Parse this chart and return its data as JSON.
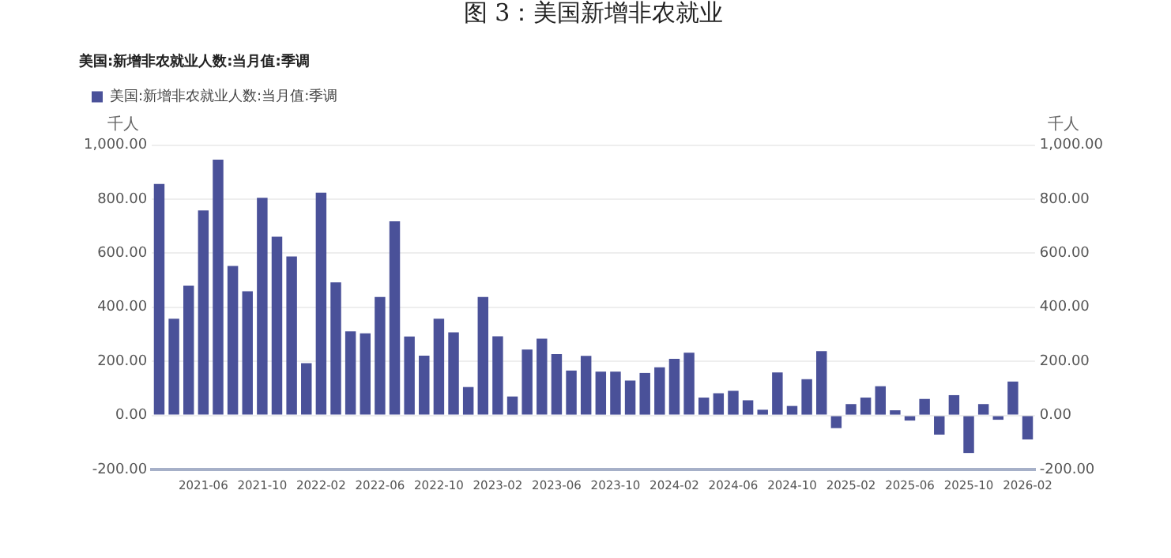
{
  "chart_data": {
    "type": "bar",
    "title": "图 3：美国新增非农就业",
    "subtitle": "美国:新增非农就业人数:当月值:季调",
    "ylabel": "千人",
    "y2label": "千人",
    "categories": [
      null,
      null,
      null,
      "2021-06",
      null,
      null,
      null,
      "2021-10",
      null,
      null,
      null,
      "2022-02",
      null,
      null,
      null,
      "2022-06",
      null,
      null,
      null,
      "2022-10",
      null,
      null,
      null,
      "2023-02",
      null,
      null,
      null,
      "2023-06",
      null,
      null,
      null,
      "2023-10",
      null,
      null,
      null,
      "2024-02",
      null,
      null,
      null,
      "2024-06",
      null,
      null,
      null,
      "2024-10",
      null,
      null,
      null,
      "2025-02",
      null,
      null,
      null,
      "2025-06",
      null,
      null,
      null,
      "2025-10",
      null,
      null,
      null,
      "2026-02"
    ],
    "series": [
      {
        "name": "美国:新增非农就业人数:当月值:季调",
        "color": "#4a5199",
        "values": [
          856,
          358,
          480,
          758,
          946,
          553,
          459,
          805,
          661,
          588,
          193,
          824,
          492,
          311,
          304,
          438,
          718,
          292,
          221,
          358,
          307,
          105,
          438,
          293,
          70,
          244,
          284,
          227,
          166,
          220,
          162,
          162,
          129,
          157,
          178,
          209,
          232,
          66,
          82,
          91,
          56,
          21,
          159,
          35,
          134,
          238,
          -47,
          42,
          66,
          108,
          19,
          -19,
          61,
          -71,
          75,
          -139,
          42,
          -16,
          125,
          -89
        ]
      }
    ],
    "ylim": [
      -200,
      1000
    ],
    "yticks": [
      {
        "value": -200,
        "label": "-200.00"
      },
      {
        "value": 0,
        "label": "0.00"
      },
      {
        "value": 200,
        "label": "200.00"
      },
      {
        "value": 400,
        "label": "400.00"
      },
      {
        "value": 600,
        "label": "600.00"
      },
      {
        "value": 800,
        "label": "800.00"
      },
      {
        "value": 1000,
        "label": "1,000.00"
      }
    ],
    "y2lim": [
      -200,
      1000
    ],
    "y2ticks": [
      {
        "value": -200,
        "label": "-200.00"
      },
      {
        "value": 0,
        "label": "0.00"
      },
      {
        "value": 200,
        "label": "200.00"
      },
      {
        "value": 400,
        "label": "400.00"
      },
      {
        "value": 600,
        "label": "600.00"
      },
      {
        "value": 800,
        "label": "800.00"
      },
      {
        "value": 1000,
        "label": "1,000.00"
      }
    ],
    "grid": "y",
    "legend": "top left"
  }
}
